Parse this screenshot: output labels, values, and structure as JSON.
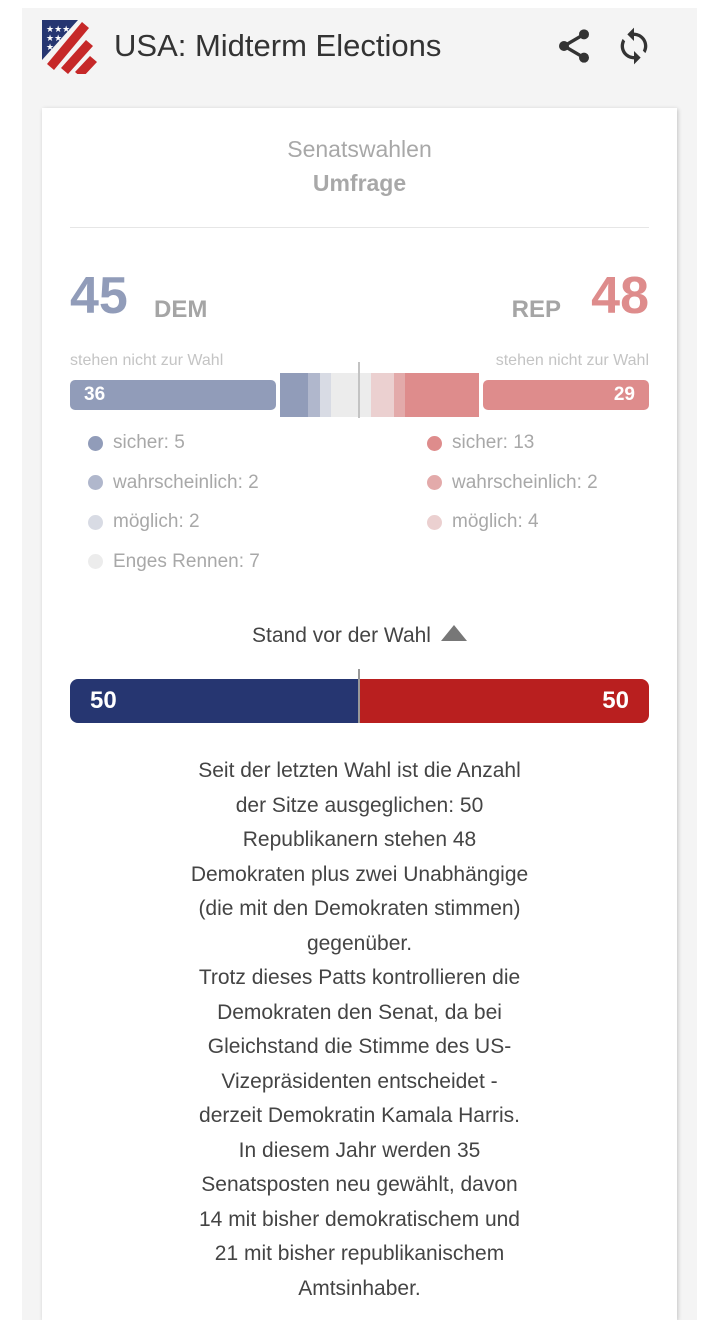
{
  "header": {
    "title": "USA: Midterm Elections",
    "icons": [
      "flag-logo",
      "share-icon",
      "refresh-icon"
    ]
  },
  "card": {
    "subtitle": "Senatswahlen",
    "subtitle2": "Umfrage",
    "dem": {
      "total": "45",
      "label": "DEM",
      "not_up_label": "stehen nicht zur Wahl",
      "not_up": "36",
      "color": "#919cb9"
    },
    "rep": {
      "total": "48",
      "label": "REP",
      "not_up_label": "stehen nicht zur Wahl",
      "not_up": "29",
      "color": "#de8c8c"
    },
    "segments": [
      {
        "party": "dem",
        "category": "sicher",
        "seats": 5,
        "color": "#919cb9"
      },
      {
        "party": "dem",
        "category": "wahrscheinlich",
        "seats": 2,
        "color": "#b0b7cc"
      },
      {
        "party": "dem",
        "category": "möglich",
        "seats": 2,
        "color": "#d8dbe4"
      },
      {
        "party": "tossup",
        "category": "Enges Rennen",
        "seats": 7,
        "color": "#ececec"
      },
      {
        "party": "rep",
        "category": "möglich",
        "seats": 4,
        "color": "#ebd0d0"
      },
      {
        "party": "rep",
        "category": "wahrscheinlich",
        "seats": 2,
        "color": "#e3aaaa"
      },
      {
        "party": "rep",
        "category": "sicher",
        "seats": 13,
        "color": "#de8c8c"
      }
    ],
    "legend_dem": [
      "sicher: 5",
      "wahrscheinlich: 2",
      "möglich: 2",
      "Enges Rennen: 7"
    ],
    "legend_rep": [
      "sicher: 13",
      "wahrscheinlich: 2",
      "möglich: 4"
    ],
    "stand_label": "Stand vor der Wahl",
    "current": {
      "dem": "50",
      "rep": "50",
      "dem_color": "#263671",
      "rep_color": "#b91f1f"
    },
    "text_lines": [
      "Seit der letzten Wahl ist die Anzahl",
      "der Sitze ausgeglichen: 50",
      "Republikanern stehen 48",
      "Demokraten plus zwei Unabhängige",
      "(die mit den Demokraten stimmen)",
      "gegenüber.",
      "Trotz dieses Patts kontrollieren die",
      "Demokraten den Senat, da bei",
      "Gleichstand die Stimme des US-",
      "Vizepräsidenten entscheidet -",
      "derzeit Demokratin Kamala Harris.",
      "In diesem Jahr werden 35",
      "Senatsposten neu gewählt, davon",
      "14 mit bisher demokratischem und",
      "21 mit bisher republikanischem",
      "Amtsinhaber."
    ]
  }
}
